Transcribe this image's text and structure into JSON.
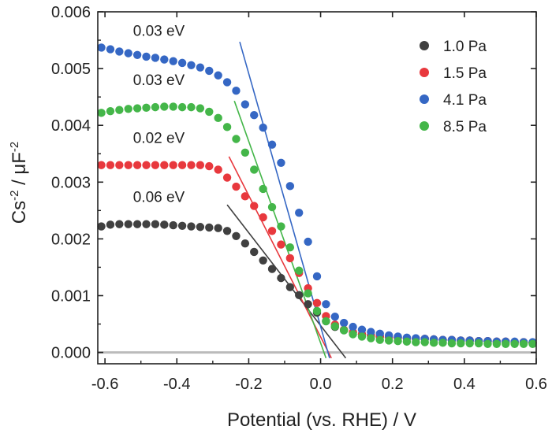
{
  "chart_data": {
    "type": "scatter",
    "xlabel": "Potential (vs. RHE) / V",
    "ylabel": {
      "base1": "Cs",
      "sup1": "-2",
      "mid": " / μF",
      "sup2": "-2"
    },
    "xlim": [
      -0.62,
      0.6
    ],
    "ylim": [
      -0.0002,
      0.006
    ],
    "xticks": [
      -0.6,
      -0.4,
      -0.2,
      0.0,
      0.2,
      0.4,
      0.6
    ],
    "xtick_labels": [
      "-0.6",
      "-0.4",
      "-0.2",
      "0.0",
      "0.2",
      "0.4",
      "0.6"
    ],
    "yticks": [
      0.0,
      0.001,
      0.002,
      0.003,
      0.004,
      0.005,
      0.006
    ],
    "ytick_labels": [
      "0.000",
      "0.001",
      "0.002",
      "0.003",
      "0.004",
      "0.005",
      "0.006"
    ],
    "legend_position": "top-right",
    "baseline": {
      "y": 0.0,
      "color": "#bbbbbb"
    },
    "x": [
      -0.61,
      -0.585,
      -0.56,
      -0.535,
      -0.51,
      -0.485,
      -0.46,
      -0.435,
      -0.41,
      -0.385,
      -0.36,
      -0.335,
      -0.31,
      -0.285,
      -0.26,
      -0.235,
      -0.21,
      -0.185,
      -0.16,
      -0.135,
      -0.11,
      -0.085,
      -0.06,
      -0.035,
      -0.01,
      0.015,
      0.04,
      0.065,
      0.09,
      0.115,
      0.14,
      0.165,
      0.19,
      0.215,
      0.24,
      0.265,
      0.29,
      0.315,
      0.34,
      0.365,
      0.39,
      0.415,
      0.44,
      0.465,
      0.49,
      0.515,
      0.54,
      0.565,
      0.59
    ],
    "series": [
      {
        "name": "1.0 Pa",
        "color": "#404040",
        "values": [
          0.00222,
          0.00225,
          0.00226,
          0.00226,
          0.00226,
          0.00226,
          0.00226,
          0.00225,
          0.00224,
          0.00223,
          0.00222,
          0.00221,
          0.0022,
          0.00219,
          0.00214,
          0.00205,
          0.00192,
          0.00177,
          0.00162,
          0.00147,
          0.00131,
          0.00115,
          0.00101,
          0.00085,
          0.0007,
          0.00055,
          0.00045,
          0.00039,
          0.00035,
          0.00032,
          0.0003,
          0.00028,
          0.00027,
          0.00026,
          0.00025,
          0.00024,
          0.00024,
          0.00023,
          0.00022,
          0.00022,
          0.00021,
          0.00021,
          0.0002,
          0.0002,
          0.00019,
          0.00019,
          0.00018,
          0.00018,
          0.00017
        ],
        "fit": [
          [
            -0.26,
            0.0026
          ],
          [
            0.07,
            -0.0001
          ]
        ],
        "annotation": "0.06 eV"
      },
      {
        "name": "1.5 Pa",
        "color": "#e8383d",
        "values": [
          0.0033,
          0.0033,
          0.0033,
          0.0033,
          0.0033,
          0.0033,
          0.0033,
          0.0033,
          0.0033,
          0.0033,
          0.0033,
          0.0033,
          0.00328,
          0.00322,
          0.00308,
          0.00292,
          0.00275,
          0.00258,
          0.00238,
          0.00214,
          0.0019,
          0.00166,
          0.0014,
          0.00113,
          0.00087,
          0.00064,
          0.00049,
          0.0004,
          0.00036,
          0.00032,
          0.0003,
          0.00028,
          0.00027,
          0.00026,
          0.00025,
          0.00024,
          0.00024,
          0.00023,
          0.00022,
          0.00022,
          0.00021,
          0.00021,
          0.0002,
          0.0002,
          0.00019,
          0.00019,
          0.00018,
          0.00018,
          0.00017
        ],
        "fit": [
          [
            -0.255,
            0.00345
          ],
          [
            0.03,
            -0.0001
          ]
        ],
        "annotation": "0.02 eV"
      },
      {
        "name": "4.1 Pa",
        "color": "#3567c4",
        "values": [
          0.00537,
          0.00534,
          0.0053,
          0.00527,
          0.00524,
          0.00521,
          0.00519,
          0.00516,
          0.00513,
          0.0051,
          0.00506,
          0.00502,
          0.00496,
          0.00488,
          0.00476,
          0.00461,
          0.00437,
          0.00418,
          0.00396,
          0.00366,
          0.00334,
          0.00293,
          0.00246,
          0.00195,
          0.00134,
          0.00085,
          0.00063,
          0.00052,
          0.00045,
          0.0004,
          0.00036,
          0.00033,
          0.0003,
          0.00028,
          0.00026,
          0.00025,
          0.00024,
          0.00023,
          0.00022,
          0.00022,
          0.00021,
          0.00021,
          0.0002,
          0.0002,
          0.00019,
          0.00019,
          0.00019,
          0.00018,
          0.00018
        ],
        "fit": [
          [
            -0.225,
            0.00547
          ],
          [
            0.025,
            -0.0001
          ]
        ],
        "annotation": "0.03 eV"
      },
      {
        "name": "8.5 Pa",
        "color": "#44b649",
        "values": [
          0.00422,
          0.00425,
          0.00427,
          0.00429,
          0.0043,
          0.00431,
          0.00432,
          0.00433,
          0.00433,
          0.00432,
          0.00432,
          0.0043,
          0.00424,
          0.00413,
          0.00397,
          0.00376,
          0.00352,
          0.00322,
          0.00288,
          0.00256,
          0.00222,
          0.00185,
          0.00144,
          0.00104,
          0.00073,
          0.00055,
          0.00046,
          0.00039,
          0.00032,
          0.00028,
          0.00025,
          0.00022,
          0.00021,
          0.0002,
          0.00019,
          0.00018,
          0.00018,
          0.00017,
          0.00017,
          0.00016,
          0.00016,
          0.00016,
          0.00016,
          0.00015,
          0.00015,
          0.00015,
          0.00015,
          0.00015,
          0.00015
        ],
        "fit": [
          [
            -0.24,
            0.00443
          ],
          [
            0.015,
            -0.0001
          ]
        ],
        "annotation": "0.03 eV"
      }
    ]
  }
}
